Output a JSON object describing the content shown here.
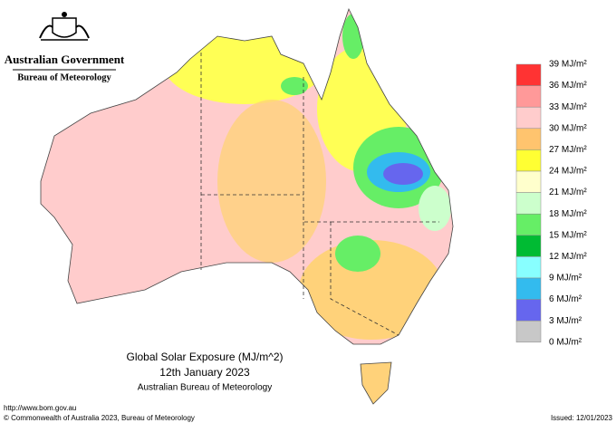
{
  "header": {
    "government": "Australian Government",
    "agency": "Bureau of Meteorology"
  },
  "map": {
    "title": "Global Solar Exposure (MJ/m^2)",
    "date": "12th January 2023",
    "credit": "Australian Bureau of Meteorology"
  },
  "legend": {
    "labels": [
      "39 MJ/m²",
      "36 MJ/m²",
      "33 MJ/m²",
      "30 MJ/m²",
      "27 MJ/m²",
      "24 MJ/m²",
      "21 MJ/m²",
      "18 MJ/m²",
      "15 MJ/m²",
      "12 MJ/m²",
      "9 MJ/m²",
      "6 MJ/m²",
      "3 MJ/m²",
      "0 MJ/m²"
    ],
    "colors": [
      "#ff3333",
      "#ff9999",
      "#ffcccc",
      "#ffc46e",
      "#ffff33",
      "#ffffcc",
      "#ccffcc",
      "#66ee66",
      "#00bb33",
      "#88ffff",
      "#33bbee",
      "#6666ee",
      "#c8c8c8"
    ]
  },
  "footer": {
    "url": "http://www.bom.gov.au",
    "copyright": "© Commonwealth of Australia 2023, Bureau of Meteorology",
    "issued": "Issued: 12/01/2023"
  }
}
